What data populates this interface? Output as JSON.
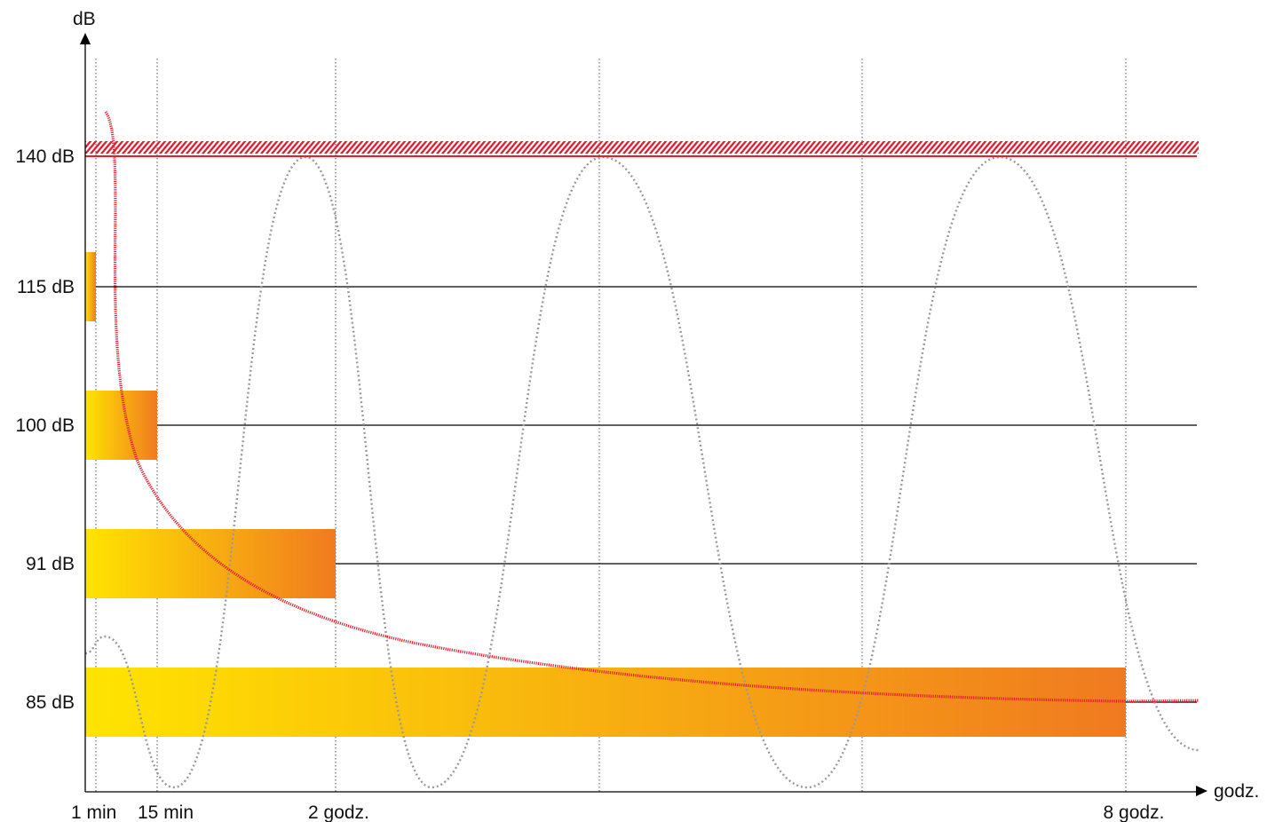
{
  "chart_data": {
    "type": "bar",
    "title": "",
    "xlabel": "godz.",
    "ylabel": "dB",
    "x_ticks": [
      "1 min",
      "15 min",
      "2 godz.",
      "8 godz."
    ],
    "y_ticks": [
      "140 dB",
      "115 dB",
      "100 dB",
      "91 dB",
      "85 dB"
    ],
    "y_values": [
      140,
      115,
      100,
      91,
      85
    ],
    "threshold": {
      "label": "140 dB",
      "value": 140
    },
    "bars": [
      {
        "level_db": 115,
        "label": "115 dB",
        "duration": "1 min"
      },
      {
        "level_db": 100,
        "label": "100 dB",
        "duration": "15 min"
      },
      {
        "level_db": 91,
        "label": "91 dB",
        "duration": "2 godz."
      },
      {
        "level_db": 85,
        "label": "85 dB",
        "duration": "8 godz."
      }
    ],
    "grid": true,
    "colors": {
      "gradient_start": "#ffe400",
      "gradient_end": "#f07a20",
      "threshold": "#e31e2d",
      "curve": "#e31e2d",
      "wave": "#999999",
      "axis": "#000000"
    }
  }
}
